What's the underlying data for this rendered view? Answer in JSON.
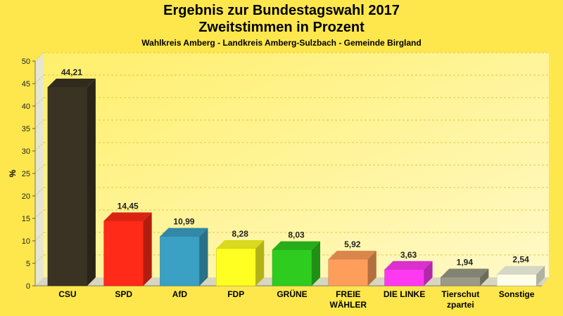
{
  "title": "Ergebnis zur Bundestagswahl 2017",
  "subtitle": "Zweitstimmen in Prozent",
  "subtitle2": "Wahlkreis Amberg - Landkreis Amberg-Sulzbach - Gemeinde Birgland",
  "chart_data": {
    "type": "bar",
    "ylabel": "%",
    "ylim": [
      0,
      50
    ],
    "yticks": [
      "0",
      "5",
      "10",
      "15",
      "20",
      "25",
      "30",
      "35",
      "40",
      "45",
      "50"
    ],
    "grid": true,
    "categories": [
      [
        "CSU"
      ],
      [
        "SPD"
      ],
      [
        "AfD"
      ],
      [
        "FDP"
      ],
      [
        "GRÜNE"
      ],
      [
        "FREIE",
        "WÄHLER"
      ],
      [
        "DIE LINKE"
      ],
      [
        "Tierschut",
        "zpartei"
      ],
      [
        "Sonstige"
      ]
    ],
    "values": [
      44.21,
      14.45,
      10.99,
      8.28,
      8.03,
      5.92,
      3.63,
      1.94,
      2.54
    ],
    "data_labels": [
      "44,21",
      "14,45",
      "10,99",
      "8,28",
      "8,03",
      "5,92",
      "3,63",
      "1,94",
      "2,54"
    ],
    "colors": [
      "#3a3222",
      "#ff2a17",
      "#3aa0c4",
      "#ffff22",
      "#2ecc1f",
      "#ff9e5a",
      "#ff38f2",
      "#9a9a86",
      "#fdfde8"
    ]
  }
}
